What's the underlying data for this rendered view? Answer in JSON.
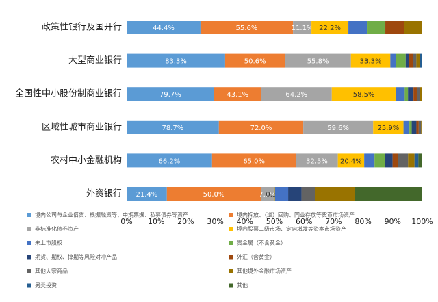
{
  "chart_data": {
    "type": "bar",
    "orientation": "horizontal",
    "stacking": "percent",
    "categories": [
      "政策性银行及国开行",
      "大型商业银行",
      "全国性中小股份制商业银行",
      "区域性城市商业银行",
      "农村中小金融机构",
      "外资银行"
    ],
    "xlim": [
      0,
      100
    ],
    "xticks": [
      {
        "value": 0,
        "label": "0%"
      },
      {
        "value": 10,
        "label": "10%"
      },
      {
        "value": 20,
        "label": "20%"
      },
      {
        "value": 30,
        "label": "30%"
      },
      {
        "value": 40,
        "label": "40%"
      },
      {
        "value": 50,
        "label": "50%"
      },
      {
        "value": 60,
        "label": "60%"
      },
      {
        "value": 70,
        "label": "70%"
      },
      {
        "value": 80,
        "label": "80%"
      },
      {
        "value": 90,
        "label": "90%"
      },
      {
        "value": 100,
        "label": "100%"
      }
    ],
    "legend": "bottom",
    "series": [
      {
        "name": "境内公司与企业借贷、根据融资等、中期票据、私募债券等资产",
        "color": "#5b9bd5",
        "values": [
          44.4,
          83.3,
          79.7,
          78.7,
          66.2,
          21.4
        ],
        "value_labels": [
          "44.4%",
          "83.3%",
          "79.7%",
          "78.7%",
          "66.2%",
          "21.4%"
        ]
      },
      {
        "name": "境内拆放、（逆）回购、同业存放等货币市场资产",
        "color": "#ed7d31",
        "values": [
          55.6,
          50.6,
          43.1,
          72.0,
          65.0,
          50.0
        ],
        "value_labels": [
          "55.6%",
          "50.6%",
          "43.1%",
          "72.0%",
          "65.0%",
          "50.0%"
        ]
      },
      {
        "name": "非标准化债券资产",
        "color": "#a5a5a5",
        "values": [
          11.1,
          55.8,
          64.2,
          59.6,
          32.5,
          7.1
        ],
        "value_labels": [
          "11.1%",
          "55.8%",
          "64.2%",
          "59.6%",
          "32.5%",
          "7.1%"
        ]
      },
      {
        "name": "境内股票二级市场、定向增发等资本市场资产",
        "color": "#ffc000",
        "values": [
          22.2,
          33.3,
          58.5,
          25.9,
          20.4,
          0.3
        ],
        "value_labels": [
          "22.2%",
          "33.3%",
          "58.5%",
          "25.9%",
          "20.4%",
          "0.3%"
        ]
      },
      {
        "name": "未上市股权",
        "color": "#4472c4",
        "values": [
          11.1,
          5,
          8,
          5,
          8,
          7.1
        ]
      },
      {
        "name": "贵金属（不含黄金）",
        "color": "#70ad47",
        "values": [
          11.1,
          8,
          3,
          2,
          8,
          0
        ]
      },
      {
        "name": "期货、期权、掉期等风险对冲产品",
        "color": "#264478",
        "values": [
          0,
          3,
          5,
          4,
          6,
          7.1
        ]
      },
      {
        "name": "外汇（含黄金）",
        "color": "#9e480e",
        "values": [
          11.1,
          3,
          3,
          2,
          4,
          0
        ]
      },
      {
        "name": "其他大宗商品",
        "color": "#636363",
        "values": [
          0,
          3,
          3,
          2,
          8,
          7.1
        ]
      },
      {
        "name": "其他境外金融市场资产",
        "color": "#997300",
        "values": [
          11.1,
          3,
          2,
          1,
          5,
          21.4
        ]
      },
      {
        "name": "另类投资",
        "color": "#255e91",
        "values": [
          0,
          2,
          0,
          0,
          3,
          0
        ]
      },
      {
        "name": "其他",
        "color": "#43682b",
        "values": [
          0,
          0,
          0,
          0,
          3,
          35.7
        ]
      }
    ]
  }
}
